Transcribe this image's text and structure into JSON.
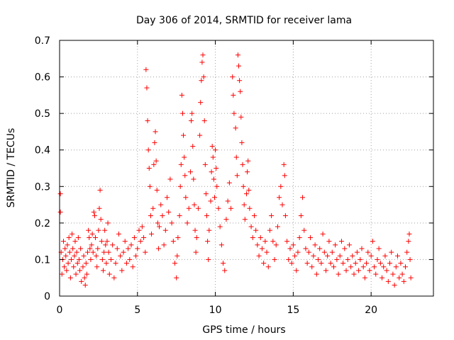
{
  "chart_data": {
    "type": "scatter",
    "title": "Day 306 of 2014, SRMTID for receiver lama",
    "xlabel": "GPS time / hours",
    "ylabel": "SRMTID / TECUs",
    "xlim": [
      0,
      24
    ],
    "ylim": [
      0,
      0.7
    ],
    "xticks": [
      0,
      5,
      10,
      15,
      20
    ],
    "xtick_labels": [
      "0",
      "5",
      "10",
      "15",
      "20"
    ],
    "yticks": [
      0,
      0.1,
      0.2,
      0.3,
      0.4,
      0.5,
      0.6,
      0.7
    ],
    "ytick_labels": [
      "0",
      "0.1",
      "0.2",
      "0.3",
      "0.4",
      "0.5",
      "0.6",
      "0.7"
    ],
    "grid": true,
    "marker": "+",
    "color": "#ff0000",
    "series": [
      {
        "name": "SRMTID",
        "points": [
          [
            0.05,
            0.28
          ],
          [
            0.05,
            0.23
          ],
          [
            0.1,
            0.12
          ],
          [
            0.15,
            0.06
          ],
          [
            0.2,
            0.1
          ],
          [
            0.25,
            0.15
          ],
          [
            0.3,
            0.08
          ],
          [
            0.35,
            0.13
          ],
          [
            0.4,
            0.11
          ],
          [
            0.45,
            0.07
          ],
          [
            0.5,
            0.14
          ],
          [
            0.55,
            0.09
          ],
          [
            0.6,
            0.16
          ],
          [
            0.65,
            0.12
          ],
          [
            0.7,
            0.05
          ],
          [
            0.75,
            0.1
          ],
          [
            0.8,
            0.17
          ],
          [
            0.85,
            0.13
          ],
          [
            0.9,
            0.08
          ],
          [
            0.95,
            0.11
          ],
          [
            1.0,
            0.15
          ],
          [
            1.05,
            0.06
          ],
          [
            1.1,
            0.12
          ],
          [
            1.15,
            0.09
          ],
          [
            1.2,
            0.16
          ],
          [
            1.25,
            0.1
          ],
          [
            1.3,
            0.07
          ],
          [
            1.35,
            0.13
          ],
          [
            1.4,
            0.04
          ],
          [
            1.5,
            0.08
          ],
          [
            1.55,
            0.11
          ],
          [
            1.6,
            0.05
          ],
          [
            1.65,
            0.03
          ],
          [
            1.7,
            0.09
          ],
          [
            1.75,
            0.06
          ],
          [
            1.8,
            0.12
          ],
          [
            1.85,
            0.18
          ],
          [
            1.9,
            0.16
          ],
          [
            1.95,
            0.13
          ],
          [
            2.0,
            0.1
          ],
          [
            2.05,
            0.14
          ],
          [
            2.1,
            0.17
          ],
          [
            2.15,
            0.12
          ],
          [
            2.2,
            0.23
          ],
          [
            2.25,
            0.22
          ],
          [
            2.3,
            0.16
          ],
          [
            2.35,
            0.11
          ],
          [
            2.4,
            0.08
          ],
          [
            2.45,
            0.13
          ],
          [
            2.5,
            0.18
          ],
          [
            2.55,
            0.24
          ],
          [
            2.6,
            0.29
          ],
          [
            2.65,
            0.21
          ],
          [
            2.7,
            0.15
          ],
          [
            2.75,
            0.1
          ],
          [
            2.8,
            0.07
          ],
          [
            2.85,
            0.12
          ],
          [
            2.9,
            0.18
          ],
          [
            2.95,
            0.14
          ],
          [
            3.0,
            0.09
          ],
          [
            3.05,
            0.15
          ],
          [
            3.1,
            0.2
          ],
          [
            3.15,
            0.12
          ],
          [
            3.2,
            0.06
          ],
          [
            3.3,
            0.1
          ],
          [
            3.4,
            0.14
          ],
          [
            3.5,
            0.05
          ],
          [
            3.6,
            0.09
          ],
          [
            3.7,
            0.13
          ],
          [
            3.8,
            0.17
          ],
          [
            3.9,
            0.11
          ],
          [
            4.0,
            0.07
          ],
          [
            4.1,
            0.12
          ],
          [
            4.2,
            0.15
          ],
          [
            4.3,
            0.09
          ],
          [
            4.4,
            0.13
          ],
          [
            4.5,
            0.1
          ],
          [
            4.6,
            0.14
          ],
          [
            4.7,
            0.08
          ],
          [
            4.8,
            0.16
          ],
          [
            4.9,
            0.11
          ],
          [
            5.0,
            0.13
          ],
          [
            5.1,
            0.18
          ],
          [
            5.2,
            0.15
          ],
          [
            5.3,
            0.19
          ],
          [
            5.4,
            0.16
          ],
          [
            5.5,
            0.12
          ],
          [
            5.55,
            0.62
          ],
          [
            5.6,
            0.57
          ],
          [
            5.65,
            0.48
          ],
          [
            5.7,
            0.4
          ],
          [
            5.75,
            0.35
          ],
          [
            5.8,
            0.3
          ],
          [
            5.85,
            0.22
          ],
          [
            5.9,
            0.17
          ],
          [
            6.0,
            0.24
          ],
          [
            6.05,
            0.36
          ],
          [
            6.1,
            0.42
          ],
          [
            6.15,
            0.45
          ],
          [
            6.2,
            0.37
          ],
          [
            6.25,
            0.29
          ],
          [
            6.3,
            0.2
          ],
          [
            6.35,
            0.13
          ],
          [
            6.4,
            0.19
          ],
          [
            6.5,
            0.25
          ],
          [
            6.6,
            0.22
          ],
          [
            6.7,
            0.14
          ],
          [
            6.8,
            0.18
          ],
          [
            6.9,
            0.27
          ],
          [
            7.0,
            0.23
          ],
          [
            7.1,
            0.32
          ],
          [
            7.2,
            0.2
          ],
          [
            7.3,
            0.15
          ],
          [
            7.4,
            0.09
          ],
          [
            7.5,
            0.05
          ],
          [
            7.55,
            0.11
          ],
          [
            7.6,
            0.16
          ],
          [
            7.7,
            0.22
          ],
          [
            7.75,
            0.3
          ],
          [
            7.8,
            0.36
          ],
          [
            7.85,
            0.55
          ],
          [
            7.9,
            0.5
          ],
          [
            7.95,
            0.44
          ],
          [
            8.0,
            0.38
          ],
          [
            8.05,
            0.33
          ],
          [
            8.1,
            0.27
          ],
          [
            8.2,
            0.2
          ],
          [
            8.3,
            0.24
          ],
          [
            8.4,
            0.34
          ],
          [
            8.45,
            0.48
          ],
          [
            8.5,
            0.5
          ],
          [
            8.55,
            0.41
          ],
          [
            8.6,
            0.32
          ],
          [
            8.65,
            0.25
          ],
          [
            8.7,
            0.18
          ],
          [
            8.75,
            0.12
          ],
          [
            8.8,
            0.16
          ],
          [
            8.9,
            0.24
          ],
          [
            9.0,
            0.44
          ],
          [
            9.05,
            0.53
          ],
          [
            9.1,
            0.59
          ],
          [
            9.15,
            0.64
          ],
          [
            9.2,
            0.66
          ],
          [
            9.25,
            0.6
          ],
          [
            9.3,
            0.48
          ],
          [
            9.35,
            0.36
          ],
          [
            9.4,
            0.28
          ],
          [
            9.45,
            0.22
          ],
          [
            9.5,
            0.15
          ],
          [
            9.55,
            0.1
          ],
          [
            9.6,
            0.18
          ],
          [
            9.7,
            0.26
          ],
          [
            9.75,
            0.34
          ],
          [
            9.8,
            0.41
          ],
          [
            9.85,
            0.38
          ],
          [
            9.9,
            0.32
          ],
          [
            9.95,
            0.27
          ],
          [
            10.0,
            0.4
          ],
          [
            10.05,
            0.35
          ],
          [
            10.1,
            0.3
          ],
          [
            10.2,
            0.24
          ],
          [
            10.3,
            0.19
          ],
          [
            10.4,
            0.14
          ],
          [
            10.5,
            0.09
          ],
          [
            10.6,
            0.07
          ],
          [
            10.7,
            0.21
          ],
          [
            10.8,
            0.26
          ],
          [
            10.9,
            0.31
          ],
          [
            11.0,
            0.24
          ],
          [
            11.1,
            0.6
          ],
          [
            11.15,
            0.55
          ],
          [
            11.2,
            0.5
          ],
          [
            11.3,
            0.46
          ],
          [
            11.35,
            0.38
          ],
          [
            11.4,
            0.33
          ],
          [
            11.45,
            0.66
          ],
          [
            11.5,
            0.63
          ],
          [
            11.55,
            0.59
          ],
          [
            11.6,
            0.56
          ],
          [
            11.65,
            0.49
          ],
          [
            11.7,
            0.42
          ],
          [
            11.75,
            0.36
          ],
          [
            11.8,
            0.3
          ],
          [
            11.85,
            0.25
          ],
          [
            11.9,
            0.21
          ],
          [
            12.0,
            0.28
          ],
          [
            12.05,
            0.34
          ],
          [
            12.1,
            0.37
          ],
          [
            12.15,
            0.29
          ],
          [
            12.2,
            0.24
          ],
          [
            12.3,
            0.19
          ],
          [
            12.4,
            0.16
          ],
          [
            12.5,
            0.22
          ],
          [
            12.6,
            0.18
          ],
          [
            12.7,
            0.14
          ],
          [
            12.8,
            0.11
          ],
          [
            12.9,
            0.16
          ],
          [
            13.0,
            0.13
          ],
          [
            13.1,
            0.09
          ],
          [
            13.2,
            0.15
          ],
          [
            13.3,
            0.12
          ],
          [
            13.4,
            0.08
          ],
          [
            13.5,
            0.18
          ],
          [
            13.6,
            0.22
          ],
          [
            13.7,
            0.15
          ],
          [
            13.8,
            0.1
          ],
          [
            13.9,
            0.14
          ],
          [
            14.0,
            0.19
          ],
          [
            14.1,
            0.27
          ],
          [
            14.2,
            0.3
          ],
          [
            14.3,
            0.25
          ],
          [
            14.4,
            0.36
          ],
          [
            14.45,
            0.33
          ],
          [
            14.5,
            0.22
          ],
          [
            14.6,
            0.15
          ],
          [
            14.7,
            0.1
          ],
          [
            14.8,
            0.13
          ],
          [
            14.9,
            0.09
          ],
          [
            15.0,
            0.14
          ],
          [
            15.1,
            0.11
          ],
          [
            15.2,
            0.07
          ],
          [
            15.3,
            0.12
          ],
          [
            15.4,
            0.16
          ],
          [
            15.5,
            0.22
          ],
          [
            15.6,
            0.27
          ],
          [
            15.7,
            0.18
          ],
          [
            15.8,
            0.13
          ],
          [
            15.9,
            0.09
          ],
          [
            16.0,
            0.12
          ],
          [
            16.1,
            0.16
          ],
          [
            16.2,
            0.08
          ],
          [
            16.3,
            0.11
          ],
          [
            16.4,
            0.14
          ],
          [
            16.5,
            0.06
          ],
          [
            16.6,
            0.1
          ],
          [
            16.7,
            0.13
          ],
          [
            16.8,
            0.09
          ],
          [
            16.9,
            0.17
          ],
          [
            17.0,
            0.12
          ],
          [
            17.1,
            0.07
          ],
          [
            17.2,
            0.11
          ],
          [
            17.3,
            0.15
          ],
          [
            17.4,
            0.09
          ],
          [
            17.5,
            0.12
          ],
          [
            17.6,
            0.08
          ],
          [
            17.7,
            0.14
          ],
          [
            17.8,
            0.1
          ],
          [
            17.9,
            0.06
          ],
          [
            18.0,
            0.11
          ],
          [
            18.1,
            0.15
          ],
          [
            18.2,
            0.09
          ],
          [
            18.3,
            0.13
          ],
          [
            18.4,
            0.07
          ],
          [
            18.5,
            0.1
          ],
          [
            18.6,
            0.14
          ],
          [
            18.7,
            0.08
          ],
          [
            18.8,
            0.11
          ],
          [
            18.9,
            0.06
          ],
          [
            19.0,
            0.09
          ],
          [
            19.1,
            0.12
          ],
          [
            19.2,
            0.07
          ],
          [
            19.3,
            0.1
          ],
          [
            19.4,
            0.13
          ],
          [
            19.5,
            0.08
          ],
          [
            19.6,
            0.05
          ],
          [
            19.7,
            0.09
          ],
          [
            19.8,
            0.12
          ],
          [
            19.9,
            0.07
          ],
          [
            20.0,
            0.11
          ],
          [
            20.1,
            0.15
          ],
          [
            20.2,
            0.08
          ],
          [
            20.3,
            0.06
          ],
          [
            20.4,
            0.1
          ],
          [
            20.5,
            0.13
          ],
          [
            20.6,
            0.09
          ],
          [
            20.7,
            0.05
          ],
          [
            20.8,
            0.08
          ],
          [
            20.9,
            0.11
          ],
          [
            21.0,
            0.07
          ],
          [
            21.1,
            0.04
          ],
          [
            21.2,
            0.09
          ],
          [
            21.3,
            0.12
          ],
          [
            21.4,
            0.06
          ],
          [
            21.5,
            0.03
          ],
          [
            21.6,
            0.08
          ],
          [
            21.7,
            0.11
          ],
          [
            21.8,
            0.05
          ],
          [
            21.9,
            0.09
          ],
          [
            22.0,
            0.06
          ],
          [
            22.1,
            0.04
          ],
          [
            22.2,
            0.08
          ],
          [
            22.3,
            0.12
          ],
          [
            22.4,
            0.15
          ],
          [
            22.45,
            0.17
          ],
          [
            22.5,
            0.1
          ],
          [
            22.55,
            0.05
          ]
        ]
      }
    ]
  }
}
